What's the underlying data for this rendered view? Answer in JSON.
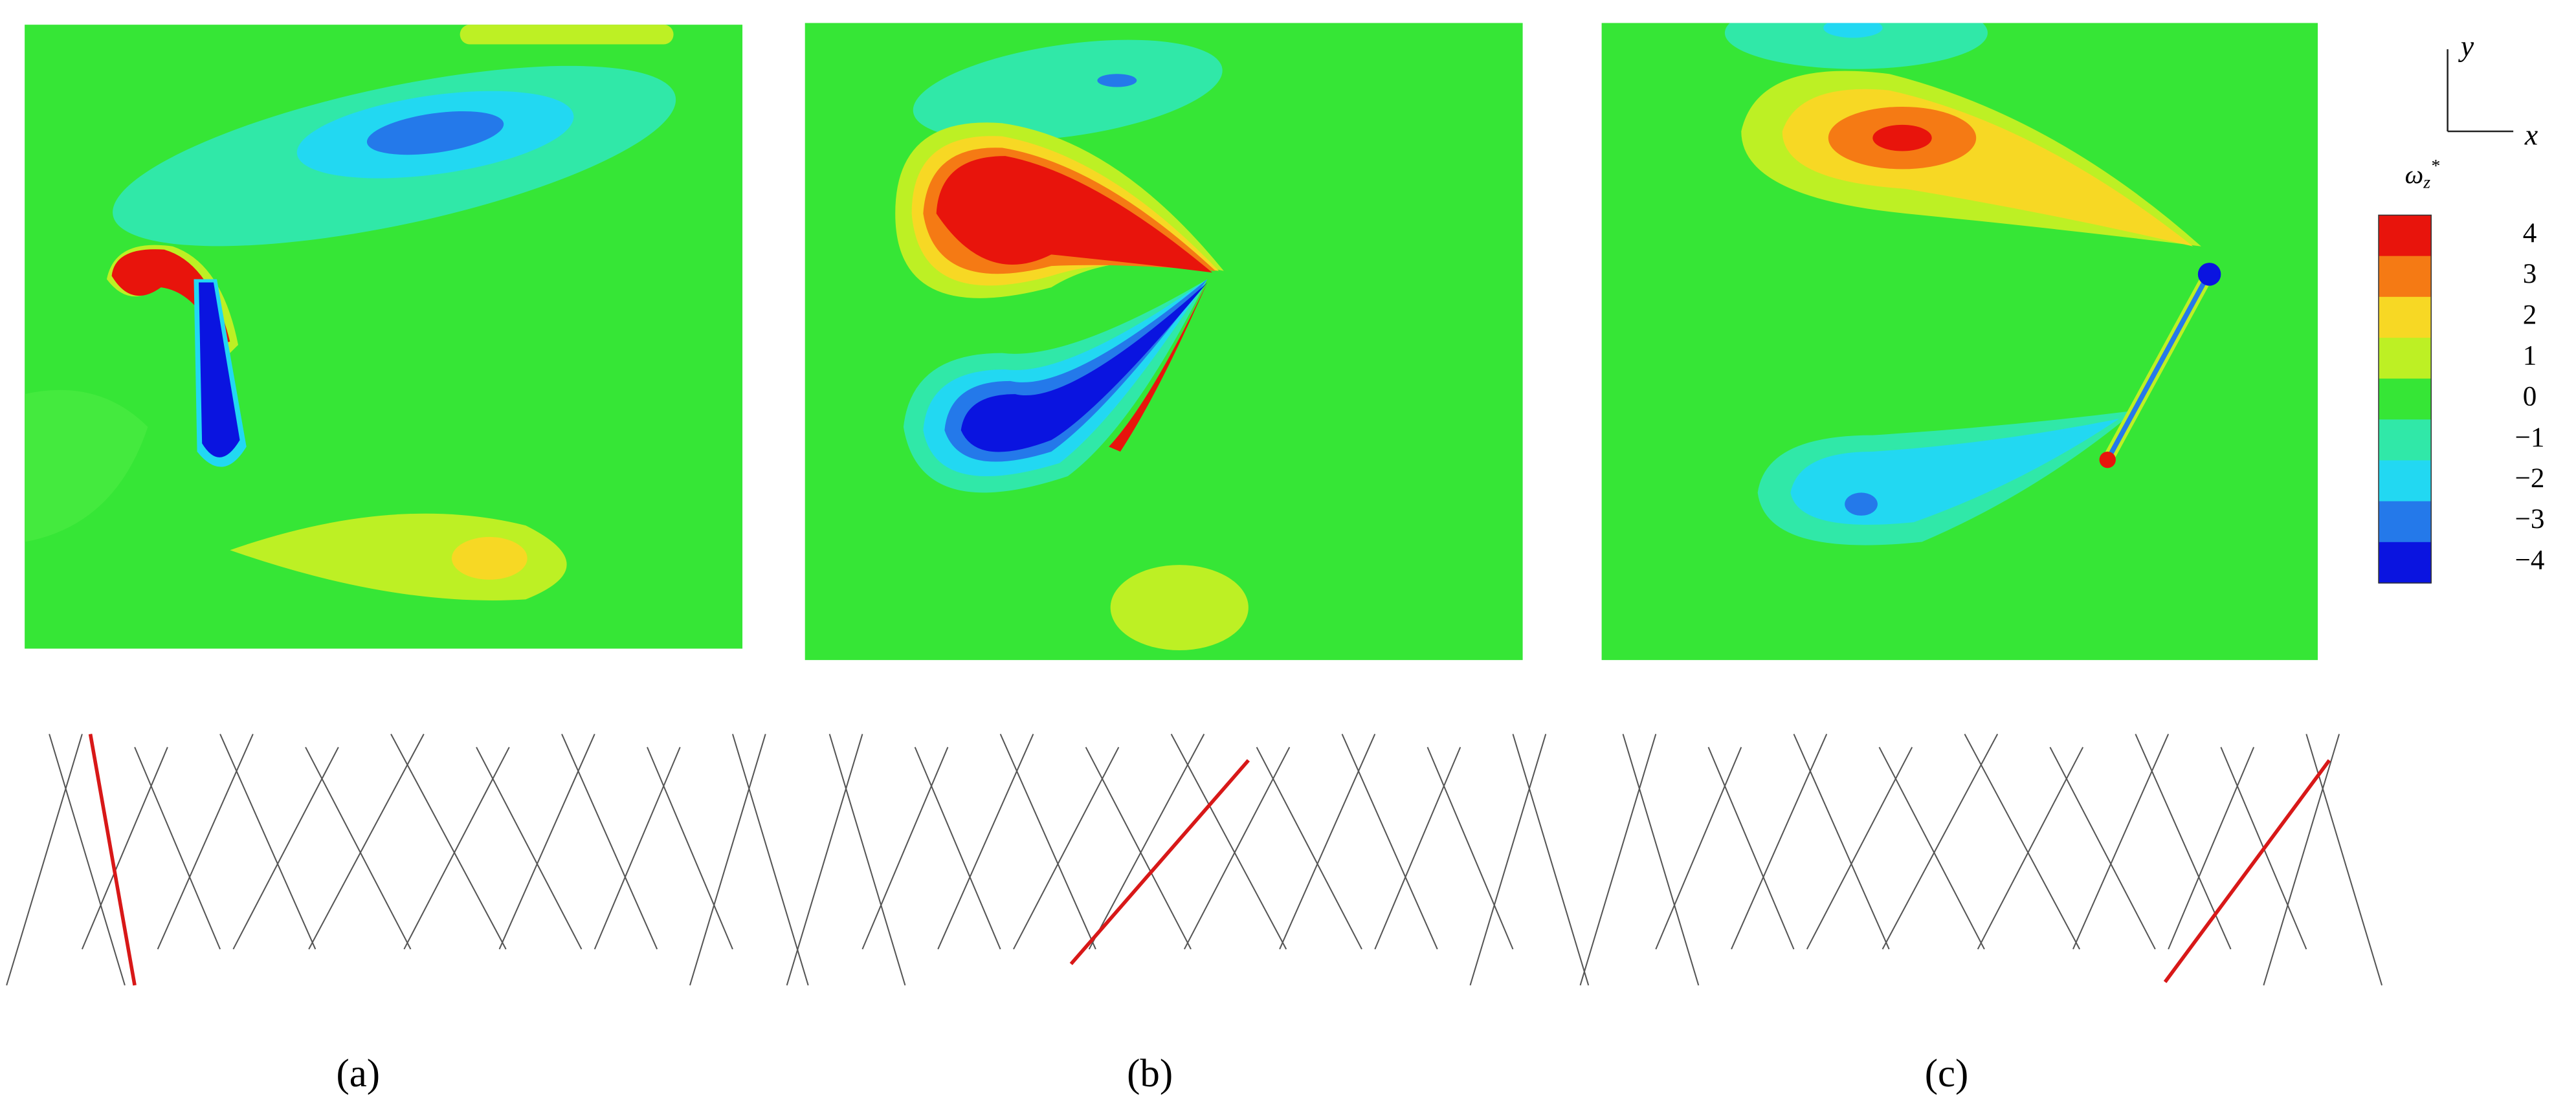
{
  "axes_icon": {
    "y_label": "y",
    "x_label": "x"
  },
  "colorbar": {
    "symbol": "ω",
    "subscript": "z",
    "superscript": "*",
    "levels": [
      {
        "value": 4,
        "label": "4",
        "color": "#e8140c"
      },
      {
        "value": 3,
        "label": "3",
        "color": "#f57a14"
      },
      {
        "value": 2,
        "label": "2",
        "color": "#f7d824"
      },
      {
        "value": 1,
        "label": "1",
        "color": "#bdf024"
      },
      {
        "value": 0,
        "label": "0",
        "color": "#36e636"
      },
      {
        "value": -1,
        "label": "−1",
        "color": "#30e8a8"
      },
      {
        "value": -2,
        "label": "−2",
        "color": "#22d8f2"
      },
      {
        "value": -3,
        "label": "−3",
        "color": "#2479ea"
      },
      {
        "value": -4,
        "label": "−4",
        "color": "#0a14e0"
      }
    ]
  },
  "panels": [
    {
      "label": "(a)"
    },
    {
      "label": "(b)"
    },
    {
      "label": "(c)"
    }
  ]
}
